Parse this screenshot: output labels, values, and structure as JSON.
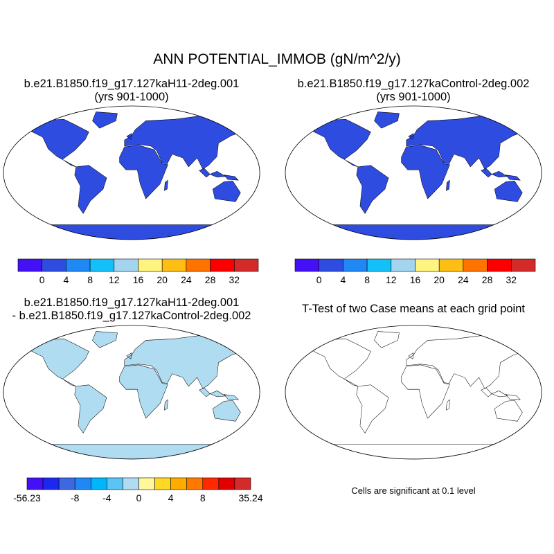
{
  "title": "ANN POTENTIAL_IMMOB (gN/m^2/y)",
  "panels": [
    {
      "line1": "b.e21.B1850.f19_g17.127kaH11-2deg.001",
      "line2": "(yrs 901-1000)"
    },
    {
      "line1": "b.e21.B1850.f19_g17.127kaControl-2deg.002",
      "line2": "(yrs 901-1000)"
    },
    {
      "line1": "b.e21.B1850.f19_g17.127kaH11-2deg.001",
      "line2": "- b.e21.B1850.f19_g17.127kaControl-2deg.002"
    },
    {
      "line1": "T-Test of two Case means at each grid point"
    }
  ],
  "colorbar_main": {
    "colors": [
      "#4410f5",
      "#2f4ce0",
      "#1f88f5",
      "#14c0f8",
      "#a3d5f0",
      "#fff480",
      "#ffbe14",
      "#ff7300",
      "#fc0000",
      "#d42a2a"
    ],
    "labels": [
      "0",
      "4",
      "8",
      "12",
      "16",
      "20",
      "24",
      "28",
      "32"
    ]
  },
  "colorbar_diff": {
    "colors": [
      "#4410f5",
      "#1a28f0",
      "#3c68e0",
      "#1f88f5",
      "#00b6fa",
      "#5cc4f5",
      "#b0dcf2",
      "#fff79a",
      "#ffd824",
      "#ffab00",
      "#ff7800",
      "#ff2800",
      "#e00000",
      "#d42a2a"
    ],
    "labels": [
      "-56.23",
      "-8",
      "-4",
      "0",
      "4",
      "8",
      "35.24"
    ]
  },
  "significance_color": "#f00000",
  "note": "Cells are significant at 0.1 level"
}
